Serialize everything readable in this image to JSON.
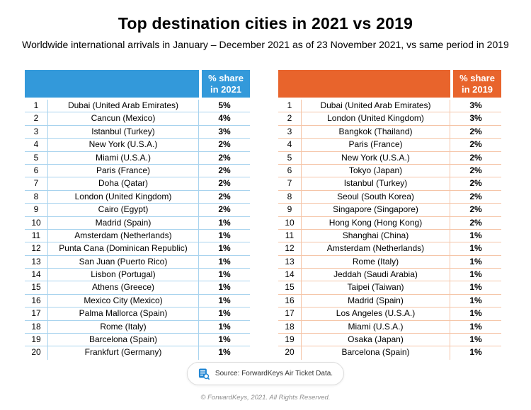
{
  "title": "Top destination cities in 2021 vs 2019",
  "subtitle": "Worldwide international arrivals in January – December 2021 as of 23 November 2021, vs same period in 2019",
  "chart_data": [
    {
      "type": "table",
      "period": "2021",
      "share_header": "% share in 2021",
      "share_header_lines": [
        "% share",
        "in 2021"
      ],
      "theme": {
        "header_bg": "#3399DA",
        "grid": "#A8D3EE"
      },
      "columns": [
        "rank",
        "city",
        "share"
      ],
      "rows": [
        [
          "1",
          "Dubai (United Arab Emirates)",
          "5%"
        ],
        [
          "2",
          "Cancun (Mexico)",
          "4%"
        ],
        [
          "3",
          "Istanbul (Turkey)",
          "3%"
        ],
        [
          "4",
          "New York (U.S.A.)",
          "2%"
        ],
        [
          "5",
          "Miami (U.S.A.)",
          "2%"
        ],
        [
          "6",
          "Paris (France)",
          "2%"
        ],
        [
          "7",
          "Doha (Qatar)",
          "2%"
        ],
        [
          "8",
          "London (United Kingdom)",
          "2%"
        ],
        [
          "9",
          "Cairo (Egypt)",
          "2%"
        ],
        [
          "10",
          "Madrid (Spain)",
          "1%"
        ],
        [
          "11",
          "Amsterdam (Netherlands)",
          "1%"
        ],
        [
          "12",
          "Punta Cana (Dominican Republic)",
          "1%"
        ],
        [
          "13",
          "San Juan (Puerto Rico)",
          "1%"
        ],
        [
          "14",
          "Lisbon (Portugal)",
          "1%"
        ],
        [
          "15",
          "Athens (Greece)",
          "1%"
        ],
        [
          "16",
          "Mexico City (Mexico)",
          "1%"
        ],
        [
          "17",
          "Palma Mallorca (Spain)",
          "1%"
        ],
        [
          "18",
          "Rome (Italy)",
          "1%"
        ],
        [
          "19",
          "Barcelona (Spain)",
          "1%"
        ],
        [
          "20",
          "Frankfurt (Germany)",
          "1%"
        ]
      ]
    },
    {
      "type": "table",
      "period": "2019",
      "share_header": "% share in 2019",
      "share_header_lines": [
        "% share",
        "in 2019"
      ],
      "theme": {
        "header_bg": "#E8642C",
        "grid": "#F5C5A8"
      },
      "columns": [
        "rank",
        "city",
        "share"
      ],
      "rows": [
        [
          "1",
          "Dubai (United Arab Emirates)",
          "3%"
        ],
        [
          "2",
          "London (United Kingdom)",
          "3%"
        ],
        [
          "3",
          "Bangkok (Thailand)",
          "2%"
        ],
        [
          "4",
          "Paris (France)",
          "2%"
        ],
        [
          "5",
          "New York (U.S.A.)",
          "2%"
        ],
        [
          "6",
          "Tokyo (Japan)",
          "2%"
        ],
        [
          "7",
          "Istanbul (Turkey)",
          "2%"
        ],
        [
          "8",
          "Seoul (South Korea)",
          "2%"
        ],
        [
          "9",
          "Singapore (Singapore)",
          "2%"
        ],
        [
          "10",
          "Hong Kong (Hong Kong)",
          "2%"
        ],
        [
          "11",
          "Shanghai (China)",
          "1%"
        ],
        [
          "12",
          "Amsterdam (Netherlands)",
          "1%"
        ],
        [
          "13",
          "Rome (Italy)",
          "1%"
        ],
        [
          "14",
          "Jeddah (Saudi Arabia)",
          "1%"
        ],
        [
          "15",
          "Taipei (Taiwan)",
          "1%"
        ],
        [
          "16",
          "Madrid (Spain)",
          "1%"
        ],
        [
          "17",
          "Los Angeles (U.S.A.)",
          "1%"
        ],
        [
          "18",
          "Miami (U.S.A.)",
          "1%"
        ],
        [
          "19",
          "Osaka (Japan)",
          "1%"
        ],
        [
          "20",
          "Barcelona (Spain)",
          "1%"
        ]
      ]
    }
  ],
  "source": {
    "icon": "document-search-icon",
    "label": "Source: ForwardKeys Air Ticket Data."
  },
  "copyright": "© ForwardKeys, 2021. All Rights Reserved."
}
